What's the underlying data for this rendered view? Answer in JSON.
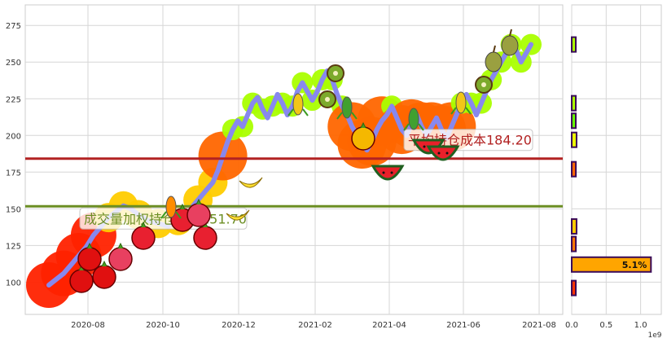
{
  "chart_data": [
    {
      "type": "line",
      "title": "",
      "xlabel": "",
      "ylabel": "",
      "x_tick_labels": [
        "2020-08",
        "2020-10",
        "2020-12",
        "2021-02",
        "2021-04",
        "2021-06",
        "2021-08"
      ],
      "y_ticks": [
        100,
        125,
        150,
        175,
        200,
        225,
        250,
        275
      ],
      "ylim": [
        78,
        289
      ],
      "grid": true,
      "series": [
        {
          "values": [
            [
              0,
              98
            ],
            [
              3,
              102
            ],
            [
              6,
              106
            ],
            [
              9,
              112
            ],
            [
              12,
              118
            ],
            [
              15,
              124
            ],
            [
              18,
              132
            ],
            [
              21,
              138
            ],
            [
              24,
              144
            ],
            [
              27,
              148
            ],
            [
              30,
              152
            ],
            [
              33,
              150
            ],
            [
              36,
              146
            ],
            [
              40,
              142
            ],
            [
              44,
              140
            ],
            [
              48,
              138
            ],
            [
              52,
              142
            ],
            [
              56,
              148
            ],
            [
              60,
              156
            ],
            [
              63,
              162
            ],
            [
              66,
              168
            ],
            [
              68,
              176
            ],
            [
              70,
              186
            ],
            [
              72,
              196
            ],
            [
              74,
              204
            ],
            [
              76,
              210
            ],
            [
              78,
              206
            ],
            [
              80,
              214
            ],
            [
              82,
              222
            ],
            [
              84,
              226
            ],
            [
              86,
              218
            ],
            [
              88,
              212
            ],
            [
              90,
              220
            ],
            [
              92,
              228
            ],
            [
              94,
              222
            ],
            [
              96,
              214
            ],
            [
              98,
              220
            ],
            [
              100,
              230
            ],
            [
              102,
              236
            ],
            [
              104,
              230
            ],
            [
              106,
              224
            ],
            [
              108,
              230
            ],
            [
              110,
              238
            ],
            [
              112,
              244
            ],
            [
              114,
              238
            ],
            [
              116,
              228
            ],
            [
              118,
              220
            ],
            [
              120,
              214
            ],
            [
              122,
              206
            ],
            [
              124,
              200
            ],
            [
              126,
              194
            ],
            [
              128,
              190
            ],
            [
              130,
              196
            ],
            [
              132,
              204
            ],
            [
              134,
              210
            ],
            [
              136,
              214
            ],
            [
              138,
              220
            ],
            [
              140,
              212
            ],
            [
              142,
              204
            ],
            [
              144,
              200
            ],
            [
              146,
              208
            ],
            [
              148,
              214
            ],
            [
              150,
              206
            ],
            [
              152,
              200
            ],
            [
              154,
              206
            ],
            [
              156,
              212
            ],
            [
              158,
              204
            ],
            [
              160,
              198
            ],
            [
              162,
              206
            ],
            [
              164,
              214
            ],
            [
              166,
              222
            ],
            [
              168,
              228
            ],
            [
              170,
              222
            ],
            [
              172,
              214
            ],
            [
              174,
              222
            ],
            [
              176,
              230
            ],
            [
              178,
              238
            ],
            [
              180,
              244
            ],
            [
              182,
              250
            ],
            [
              184,
              256
            ],
            [
              186,
              262
            ],
            [
              188,
              258
            ],
            [
              190,
              250
            ],
            [
              192,
              256
            ],
            [
              194,
              262
            ]
          ]
        }
      ],
      "hlines": [
        {
          "value": 184.2,
          "color": "#b22222",
          "label": "平均持仓成本184.20"
        },
        {
          "value": 151.7,
          "color": "#6b8e23",
          "label": "成交量加权持仓成本151.70"
        }
      ],
      "series_color": "#8888ee",
      "glow_colors": [
        "#ff2200",
        "#ff6600",
        "#ffcc00",
        "#aaff00"
      ]
    },
    {
      "type": "bar",
      "orientation": "horizontal",
      "x_tick_labels": [
        "0.0",
        "0.5",
        "1.0"
      ],
      "x_scale_label": "1e9",
      "xlim": [
        0,
        1.3
      ],
      "ylim": [
        78,
        289
      ],
      "bars": [
        {
          "price": 262,
          "value": 0.04,
          "color": "#aaff00"
        },
        {
          "price": 222,
          "value": 0.05,
          "color": "#aaff00"
        },
        {
          "price": 210,
          "value": 0.05,
          "color": "#66ff00"
        },
        {
          "price": 197,
          "value": 0.07,
          "color": "#eeff00"
        },
        {
          "price": 177,
          "value": 0.06,
          "color": "#ff6600"
        },
        {
          "price": 138,
          "value": 0.07,
          "color": "#ffcc00"
        },
        {
          "price": 126,
          "value": 0.06,
          "color": "#ff7700"
        },
        {
          "price": 112,
          "value": 1.15,
          "color": "#ffa500",
          "label": "5.1%"
        },
        {
          "price": 96,
          "value": 0.05,
          "color": "#ff3300"
        }
      ]
    }
  ]
}
